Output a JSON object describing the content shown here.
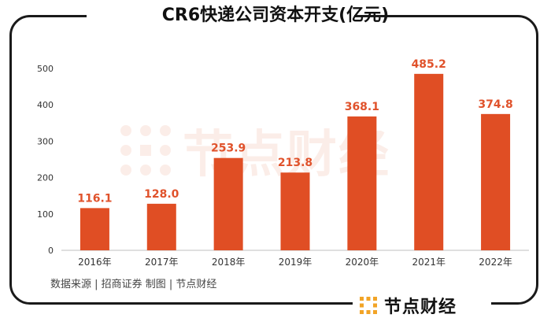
{
  "chart_data": {
    "type": "bar",
    "title": "CR6快递公司资本开支(亿元)",
    "categories": [
      "2016年",
      "2017年",
      "2018年",
      "2019年",
      "2020年",
      "2021年",
      "2022年"
    ],
    "values": [
      116.1,
      128.0,
      253.9,
      213.8,
      368.1,
      485.2,
      374.8
    ],
    "value_labels": [
      "116.1",
      "128.0",
      "253.9",
      "213.8",
      "368.1",
      "485.2",
      "374.8"
    ],
    "yticks": [
      0,
      100,
      200,
      300,
      400,
      500
    ],
    "ylim": [
      0,
      500
    ],
    "xlabel": "",
    "ylabel": "",
    "grid": false,
    "bar_color": "#e04e24",
    "label_color": "#e0522b"
  },
  "source": "数据来源 | 招商证券   制图 | 节点财经",
  "watermark_text": "节点财经",
  "logo_text": "节点财经",
  "accent_color": "#f2a427"
}
